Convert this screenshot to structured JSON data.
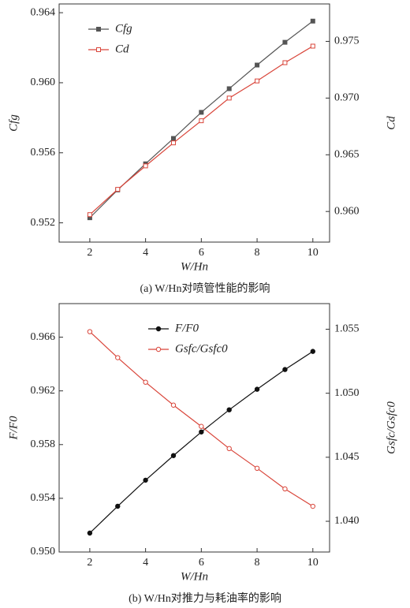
{
  "chart_data": [
    {
      "type": "line",
      "caption": "(a) W/Hn对喷管性能的影响",
      "x_label": "W/Hn",
      "y_label": "Cfg",
      "y2_label": "Cd",
      "x": [
        2,
        3,
        4,
        5,
        6,
        7,
        8,
        9,
        10
      ],
      "xlim": [
        0.9,
        10.6
      ],
      "xticks": [
        2,
        4,
        6,
        8,
        10
      ],
      "ylim": [
        0.9509,
        0.9645
      ],
      "yticks": [
        0.952,
        0.956,
        {
          "value": 0.96,
          "label": "0.960"
        },
        0.964
      ],
      "y2lim": [
        0.9573,
        0.9783
      ],
      "y2ticks": [
        {
          "value": 0.96,
          "label": "0.960"
        },
        0.965,
        {
          "value": 0.97,
          "label": "0.970"
        },
        0.975
      ],
      "legend": "upper left",
      "series": [
        {
          "name": "Cfg",
          "color": "#555555",
          "marker": "square-filled",
          "values": [
            0.95229,
            0.95388,
            0.95537,
            0.95682,
            0.95831,
            0.95966,
            0.96101,
            0.96231,
            0.96352
          ]
        },
        {
          "name": "Cd",
          "color": "#d9453a",
          "marker": "square-open",
          "axis": "y2",
          "values": [
            0.95972,
            0.96195,
            0.96402,
            0.96605,
            0.968,
            0.97,
            0.97151,
            0.97312,
            0.97458
          ]
        }
      ]
    },
    {
      "type": "line",
      "caption": "(b) W/Hn对推力与耗油率的影响",
      "x_label": "W/Hn",
      "y_label": "F/F0",
      "y2_label": "Gsfc/Gsfc0",
      "x": [
        2,
        3,
        4,
        5,
        6,
        7,
        8,
        9,
        10
      ],
      "xlim": [
        0.9,
        10.6
      ],
      "xticks": [
        2,
        4,
        6,
        8,
        10
      ],
      "ylim": [
        0.95,
        0.9685
      ],
      "yticks": [
        {
          "value": 0.95,
          "label": "0.950"
        },
        0.954,
        0.958,
        0.962,
        0.966
      ],
      "y2lim": [
        1.0376,
        1.057
      ],
      "y2ticks": [
        {
          "value": 1.04,
          "label": "1.040"
        },
        1.045,
        {
          "value": 1.05,
          "label": "1.050"
        },
        1.055
      ],
      "legend": "upper center",
      "series": [
        {
          "name": "F/F0",
          "color": "#111111",
          "marker": "circle-filled",
          "values": [
            0.95141,
            0.95341,
            0.95535,
            0.95718,
            0.95894,
            0.96059,
            0.96212,
            0.96359,
            0.96494
          ]
        },
        {
          "name": "Gsfc/Gsfc0",
          "color": "#d9453a",
          "marker": "circle-open",
          "axis": "y2",
          "values": [
            1.05481,
            1.05278,
            1.05086,
            1.04907,
            1.04741,
            1.04568,
            1.04414,
            1.04253,
            1.04117
          ]
        }
      ]
    }
  ]
}
